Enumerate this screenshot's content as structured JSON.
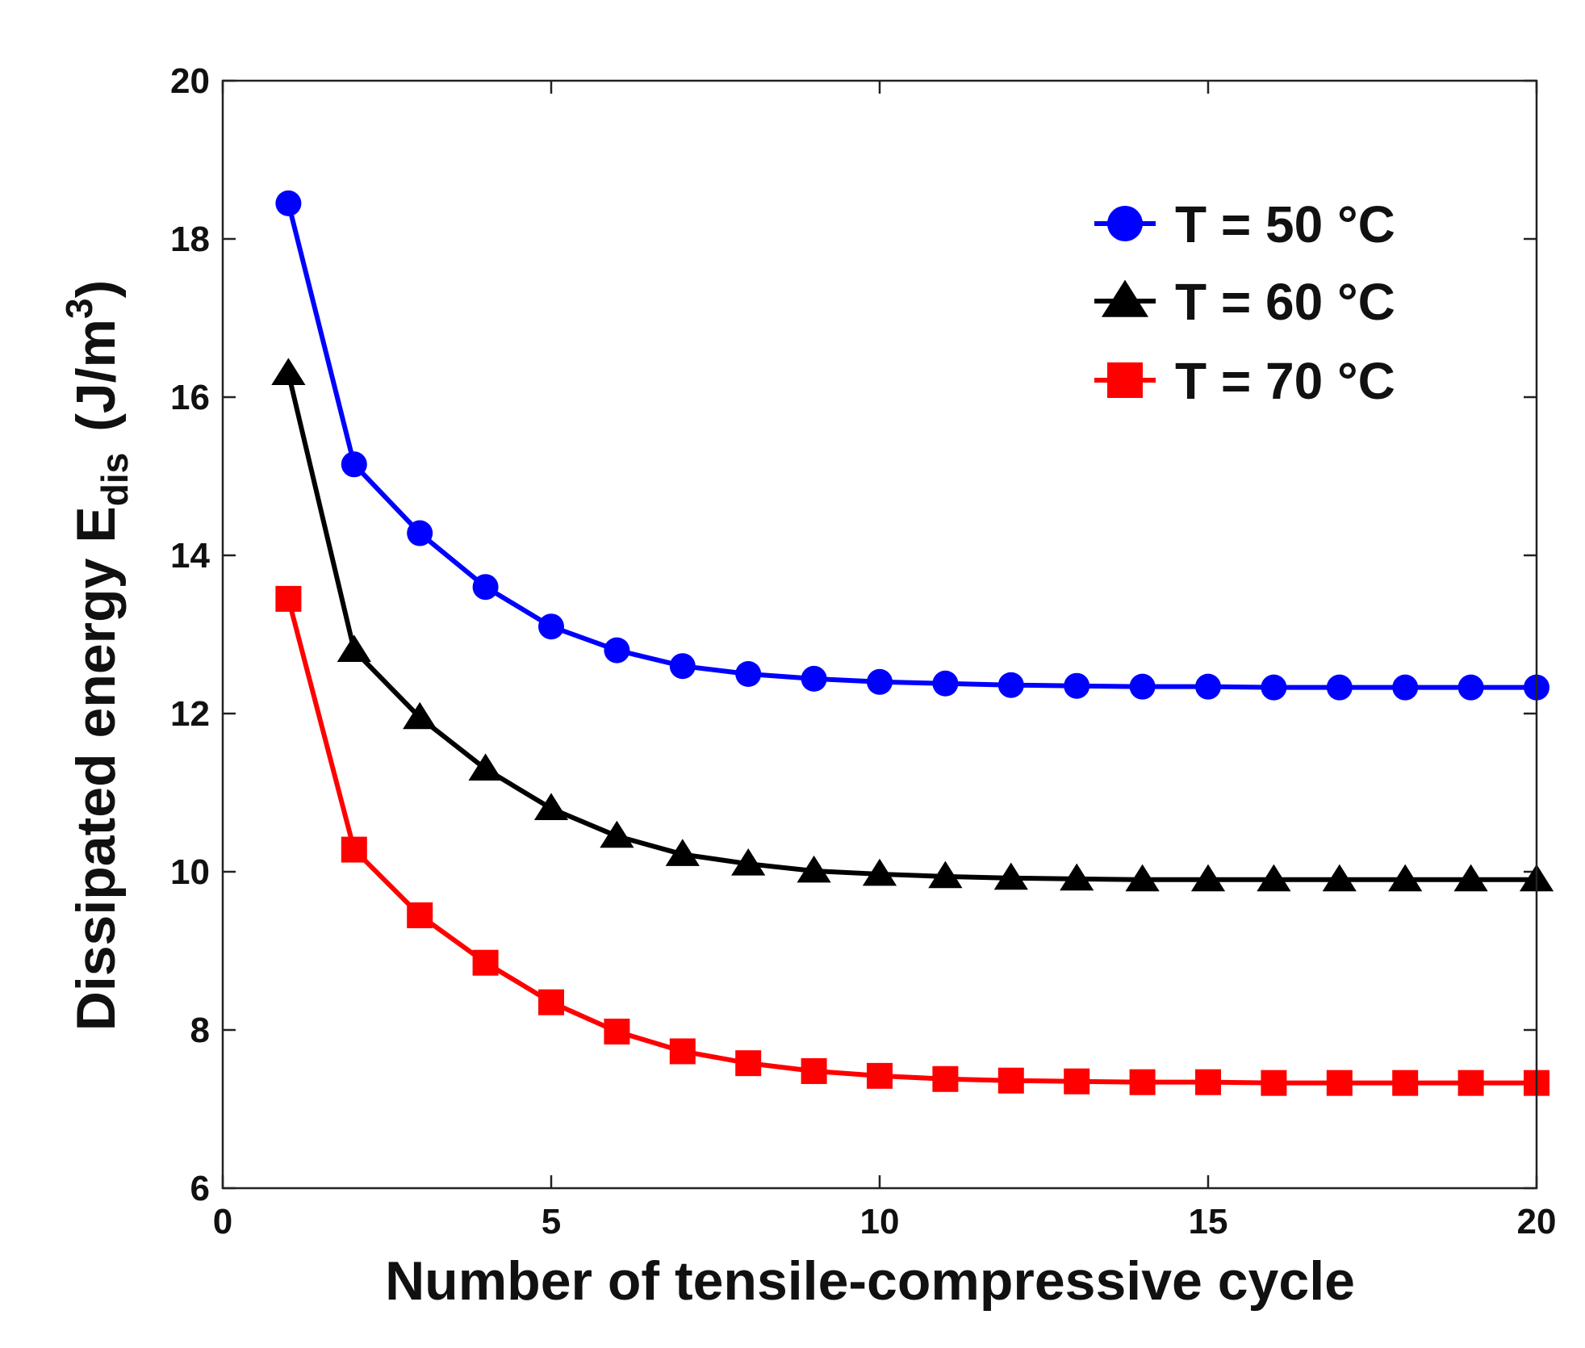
{
  "chart_data": {
    "type": "line",
    "title": "",
    "xlabel": "Number of tensile-compressive cycle",
    "ylabel": {
      "main": "Dissipated energy E",
      "subscript": "dis",
      "unit_open": "(J/m",
      "unit_sup": "3",
      "unit_close": ")"
    },
    "xlim": [
      0,
      20
    ],
    "ylim": [
      6,
      20
    ],
    "xticks": [
      0,
      5,
      10,
      15,
      20
    ],
    "yticks": [
      6,
      8,
      10,
      12,
      14,
      16,
      18,
      20
    ],
    "grid": false,
    "legend_position": "top-right",
    "x": [
      1,
      2,
      3,
      4,
      5,
      6,
      7,
      8,
      9,
      10,
      11,
      12,
      13,
      14,
      15,
      16,
      17,
      18,
      19,
      20
    ],
    "series": [
      {
        "name": "T = 50 °C",
        "color": "#0000ff",
        "marker": "circle",
        "values": [
          18.45,
          15.15,
          14.28,
          13.6,
          13.1,
          12.8,
          12.6,
          12.5,
          12.44,
          12.4,
          12.38,
          12.36,
          12.35,
          12.34,
          12.34,
          12.33,
          12.33,
          12.33,
          12.33,
          12.33
        ]
      },
      {
        "name": "T = 60 °C",
        "color": "#000000",
        "marker": "triangle",
        "values": [
          16.3,
          12.8,
          11.95,
          11.3,
          10.8,
          10.45,
          10.22,
          10.1,
          10.01,
          9.97,
          9.94,
          9.92,
          9.91,
          9.9,
          9.9,
          9.9,
          9.9,
          9.9,
          9.9,
          9.9
        ]
      },
      {
        "name": "T = 70 °C",
        "color": "#ff0000",
        "marker": "square",
        "values": [
          13.45,
          10.28,
          9.45,
          8.85,
          8.35,
          7.98,
          7.73,
          7.58,
          7.48,
          7.42,
          7.38,
          7.36,
          7.35,
          7.34,
          7.34,
          7.33,
          7.33,
          7.33,
          7.33,
          7.33
        ]
      }
    ]
  }
}
